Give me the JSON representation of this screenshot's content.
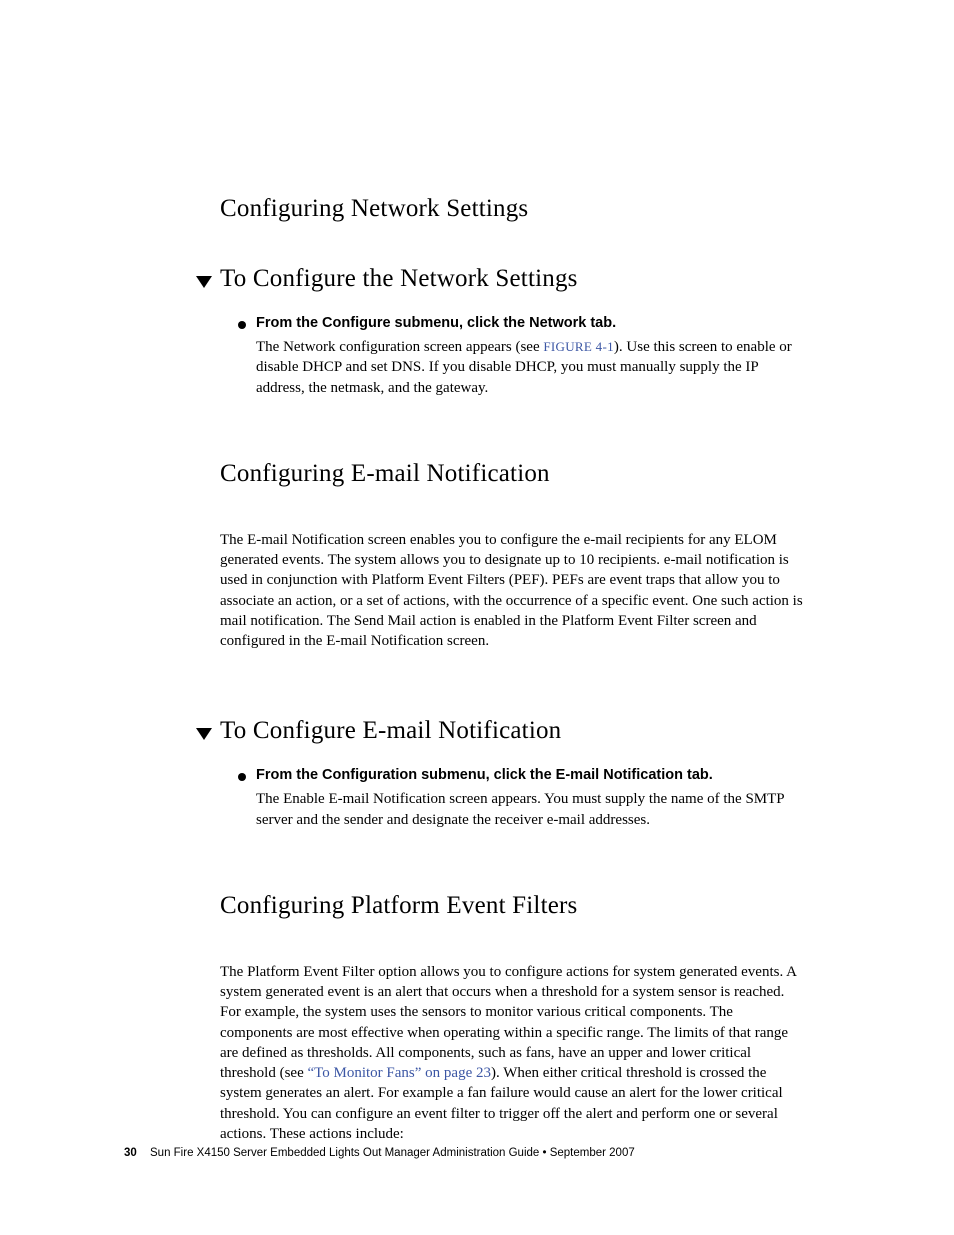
{
  "sections": {
    "s1": {
      "heading": "Configuring Network Settings",
      "sub": {
        "heading": "To Configure the Network Settings",
        "bullet_lead": "From the Configure submenu, click the Network tab.",
        "body_pre": "The Network configuration screen appears (see ",
        "figref": "FIGURE 4-1",
        "body_post": "). Use this screen to enable or disable DHCP and set DNS. If you disable DHCP, you must manually supply the IP address, the netmask, and the gateway."
      }
    },
    "s2": {
      "heading": "Configuring E-mail Notification",
      "para": "The E-mail Notification screen enables you to configure the e-mail recipients for any ELOM generated events. The system allows you to designate up to 10 recipients. e-mail notification is used in conjunction with Platform Event Filters (PEF). PEFs are event traps that allow you to associate an action, or a set of actions, with the occurrence of a specific event. One such action is mail notification. The Send Mail action is enabled in the Platform Event Filter screen and configured in the E-mail Notification screen.",
      "sub": {
        "heading": "To Configure E-mail Notification",
        "bullet_lead": "From the Configuration submenu, click the E-mail Notification tab.",
        "body": "The Enable E-mail Notification screen appears. You must supply the name of the SMTP server and the sender and designate the receiver e-mail addresses."
      }
    },
    "s3": {
      "heading": "Configuring Platform Event Filters",
      "para_pre": "The Platform Event Filter option allows you to configure actions for system generated events. A system generated event is an alert that occurs when a threshold for a system sensor is reached. For example, the system uses the sensors to monitor various critical components. The components are most effective when operating within a specific range. The limits of that range are defined as thresholds. All components, such as fans, have an upper and lower critical threshold (see ",
      "xref": "“To Monitor Fans” on page 23",
      "para_post": "). When either critical threshold is crossed the system generates an alert. For example a fan failure would cause an alert for the lower critical threshold. You can configure an event filter to trigger off the alert and perform one or several actions. These actions include:"
    }
  },
  "footer": {
    "page_number": "30",
    "text": "Sun Fire X4150 Server Embedded Lights Out Manager Administration Guide • September 2007"
  },
  "colors": {
    "link": "#3b56a4",
    "text": "#000000",
    "background": "#ffffff"
  }
}
